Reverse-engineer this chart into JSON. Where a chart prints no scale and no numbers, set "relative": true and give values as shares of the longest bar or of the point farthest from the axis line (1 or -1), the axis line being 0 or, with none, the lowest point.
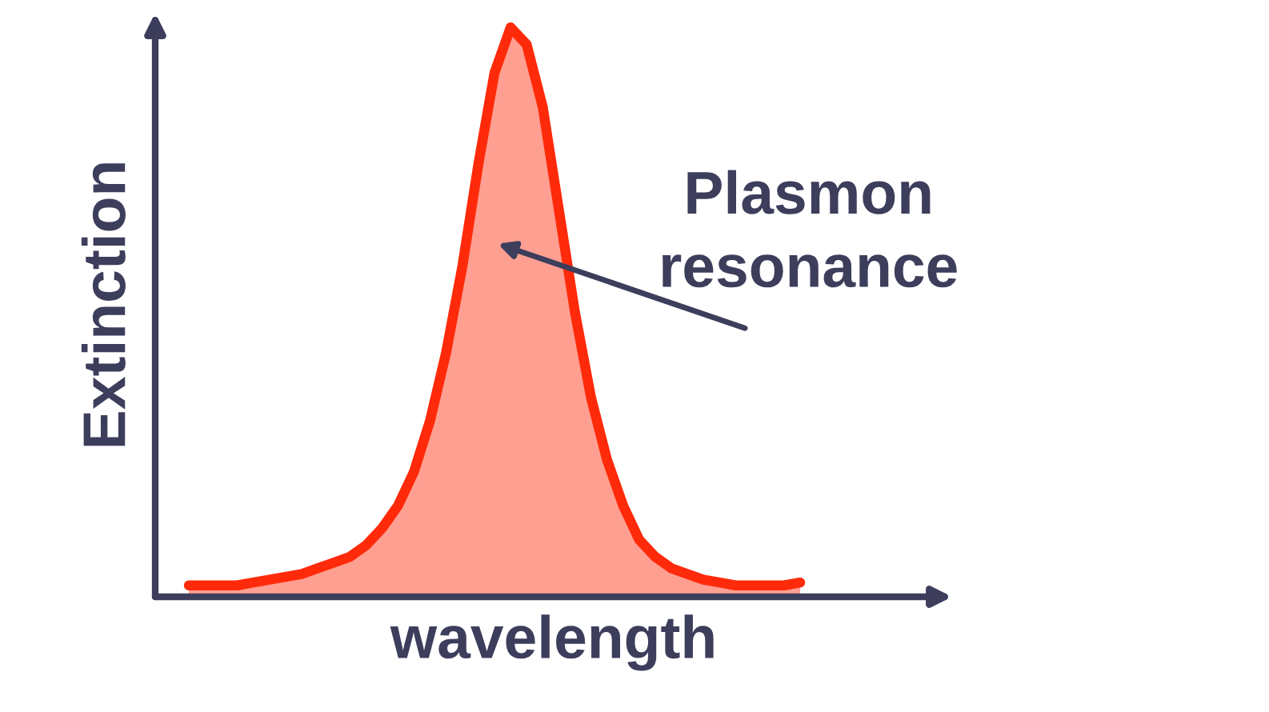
{
  "chart_data": {
    "type": "area",
    "relative": true,
    "xlabel": "wavelength",
    "ylabel": "Extinction",
    "categories": [
      null,
      null,
      null,
      null,
      null,
      null,
      null,
      null,
      null,
      null,
      null,
      null,
      null,
      null,
      null,
      null,
      null,
      null,
      null,
      null,
      null,
      null,
      null,
      null,
      null,
      null,
      null,
      null,
      null,
      null,
      null,
      null,
      null,
      null,
      null,
      null,
      null,
      null,
      null
    ],
    "series": [
      {
        "color": "#ff2a0a",
        "values": [
          0.02,
          0.02,
          0.02,
          0.02,
          0.025,
          0.03,
          0.035,
          0.04,
          0.05,
          0.06,
          0.07,
          0.09,
          0.12,
          0.16,
          0.22,
          0.31,
          0.43,
          0.58,
          0.76,
          0.92,
          1.0,
          0.97,
          0.86,
          0.68,
          0.5,
          0.35,
          0.24,
          0.16,
          0.1,
          0.07,
          0.05,
          0.04,
          0.03,
          0.025,
          0.02,
          0.02,
          0.02,
          0.02,
          0.025
        ]
      }
    ],
    "annotations": [
      "Plasmon\nresonance"
    ]
  }
}
